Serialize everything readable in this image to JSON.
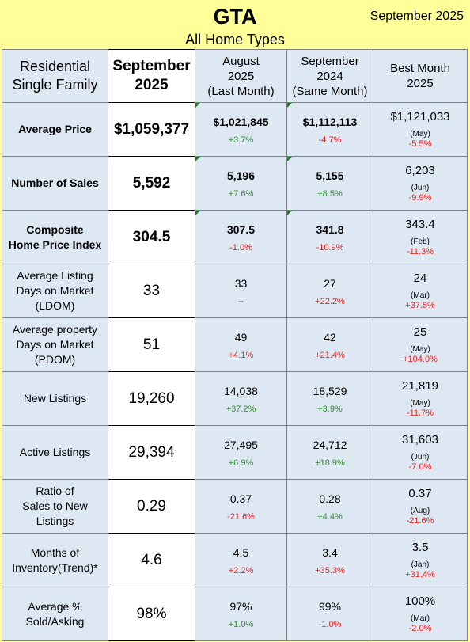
{
  "header": {
    "title": "GTA",
    "date": "September 2025",
    "subtitle": "All Home Types"
  },
  "columns": {
    "label": "Residential Single Family",
    "label_lines": [
      "Residential",
      "Single Family"
    ],
    "current": [
      "September",
      "2025"
    ],
    "last_month": [
      "August",
      "2025",
      "(Last Month)"
    ],
    "same_month": [
      "September",
      "2024",
      "(Same Month)"
    ],
    "best_month": [
      "Best Month",
      "2025"
    ]
  },
  "rows": [
    {
      "label": [
        "Average Price"
      ],
      "bold": true,
      "current": "$1,059,377",
      "last": "$1,021,845",
      "last_chg": "+3.7%",
      "last_dir": "pos",
      "same": "$1,112,113",
      "same_chg": "-4.7%",
      "same_dir": "neg",
      "best": "$1,121,033",
      "best_month": "(May)",
      "best_chg": "-5.5%",
      "best_dir": "neg"
    },
    {
      "label": [
        "Number of Sales"
      ],
      "bold": true,
      "current": "5,592",
      "last": "5,196",
      "last_chg": "+7.6%",
      "last_dir": "pos",
      "same": "5,155",
      "same_chg": "+8.5%",
      "same_dir": "pos",
      "best": "6,203",
      "best_month": "(Jun)",
      "best_chg": "-9.9%",
      "best_dir": "neg"
    },
    {
      "label": [
        "Composite",
        "Home Price Index"
      ],
      "bold": true,
      "current": "304.5",
      "last": "307.5",
      "last_chg": "-1.0%",
      "last_dir": "neg",
      "same": "341.8",
      "same_chg": "-10.9%",
      "same_dir": "neg",
      "best": "343.4",
      "best_month": "(Feb)",
      "best_chg": "-11.3%",
      "best_dir": "neg"
    },
    {
      "label": [
        "Average Listing",
        "Days on Market",
        "(LDOM)"
      ],
      "bold": false,
      "current": "33",
      "last": "33",
      "last_chg": "--",
      "last_dir": "neu",
      "same": "27",
      "same_chg": "+22.2%",
      "same_dir": "neg",
      "best": "24",
      "best_month": "(Mar)",
      "best_chg": "+37.5%",
      "best_dir": "neg"
    },
    {
      "label": [
        "Average property",
        "Days on Market",
        "(PDOM)"
      ],
      "bold": false,
      "current": "51",
      "last": "49",
      "last_chg": "+4.1%",
      "last_dir": "neg",
      "same": "42",
      "same_chg": "+21.4%",
      "same_dir": "neg",
      "best": "25",
      "best_month": "(May)",
      "best_chg": "+104.0%",
      "best_dir": "neg"
    },
    {
      "label": [
        "New Listings"
      ],
      "bold": false,
      "current": "19,260",
      "last": "14,038",
      "last_chg": "+37.2%",
      "last_dir": "pos",
      "same": "18,529",
      "same_chg": "+3.9%",
      "same_dir": "pos",
      "best": "21,819",
      "best_month": "(May)",
      "best_chg": "-11.7%",
      "best_dir": "neg"
    },
    {
      "label": [
        "Active Listings"
      ],
      "bold": false,
      "current": "29,394",
      "last": "27,495",
      "last_chg": "+6.9%",
      "last_dir": "pos",
      "same": "24,712",
      "same_chg": "+18.9%",
      "same_dir": "pos",
      "best": "31,603",
      "best_month": "(Jun)",
      "best_chg": "-7.0%",
      "best_dir": "neg"
    },
    {
      "label": [
        "Ratio of",
        "Sales to New",
        "Listings"
      ],
      "bold": false,
      "current": "0.29",
      "last": "0.37",
      "last_chg": "-21.6%",
      "last_dir": "neg",
      "same": "0.28",
      "same_chg": "+4.4%",
      "same_dir": "pos",
      "best": "0.37",
      "best_month": "(Aug)",
      "best_chg": "-21.6%",
      "best_dir": "neg"
    },
    {
      "label": [
        "Months of",
        "Inventory(Trend)*"
      ],
      "bold": false,
      "current": "4.6",
      "last": "4.5",
      "last_chg": "+2.2%",
      "last_dir": "neg",
      "same": "3.4",
      "same_chg": "+35.3%",
      "same_dir": "neg",
      "best": "3.5",
      "best_month": "(Jan)",
      "best_chg": "+31.4%",
      "best_dir": "neg"
    },
    {
      "label": [
        "Average %",
        "Sold/Asking"
      ],
      "bold": false,
      "current": "98%",
      "last": "97%",
      "last_chg": "+1.0%",
      "last_dir": "pos",
      "same": "99%",
      "same_chg": "-1.0%",
      "same_dir": "neg",
      "best": "100%",
      "best_month": "(Mar)",
      "best_chg": "-2.0%",
      "best_dir": "neg"
    }
  ],
  "colors": {
    "background": "#ffff99",
    "cell": "#dde8f3",
    "positive": "#2f8f2f",
    "negative": "#e52222",
    "marker": "#1a7a2a"
  }
}
